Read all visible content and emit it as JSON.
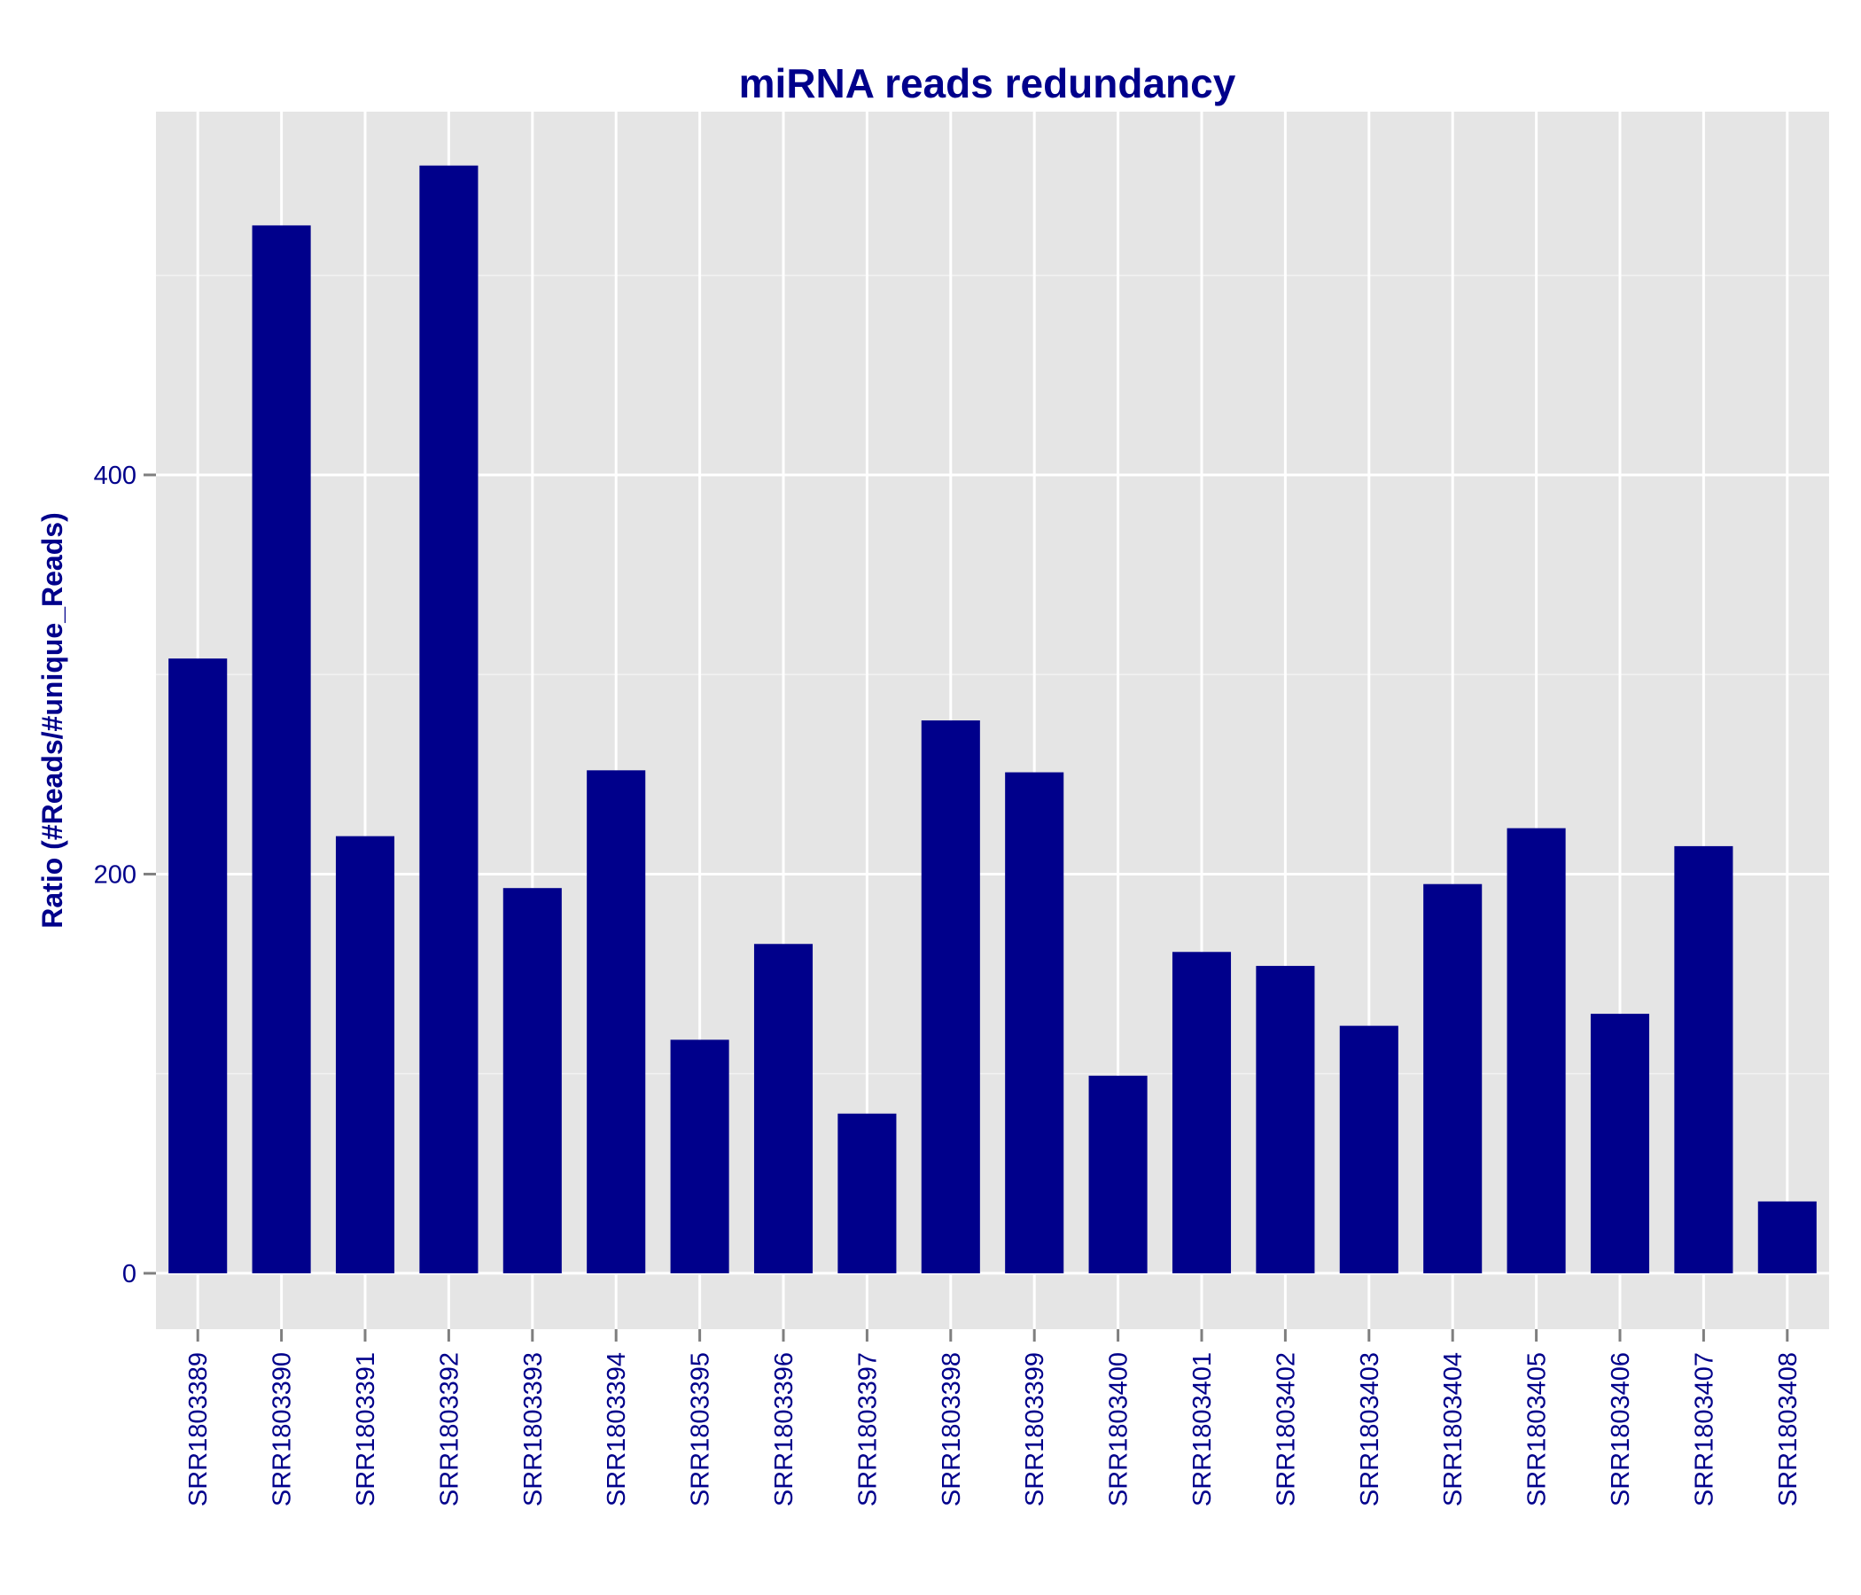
{
  "chart_data": {
    "type": "bar",
    "title": "miRNA reads redundancy",
    "xlabel": "",
    "ylabel": "Ratio (#Reads/#unique_Reads)",
    "ylim": [
      -28,
      582
    ],
    "yticks": [
      0,
      200,
      400
    ],
    "grid": true,
    "legend": "none",
    "bar_color": "#00008B",
    "panel_color": "#E5E5E5",
    "grid_color": "#FFFFFF",
    "tick_color": "#7F7F7F",
    "categories": [
      "SRR1803389",
      "SRR1803390",
      "SRR1803391",
      "SRR1803392",
      "SRR1803393",
      "SRR1803394",
      "SRR1803395",
      "SRR1803396",
      "SRR1803397",
      "SRR1803398",
      "SRR1803399",
      "SRR1803400",
      "SRR1803401",
      "SRR1803402",
      "SRR1803403",
      "SRR1803404",
      "SRR1803405",
      "SRR1803406",
      "SRR1803407",
      "SRR1803408"
    ],
    "values": [
      308,
      525,
      219,
      555,
      193,
      252,
      117,
      165,
      80,
      277,
      251,
      99,
      161,
      154,
      124,
      195,
      223,
      130,
      214,
      36
    ]
  }
}
